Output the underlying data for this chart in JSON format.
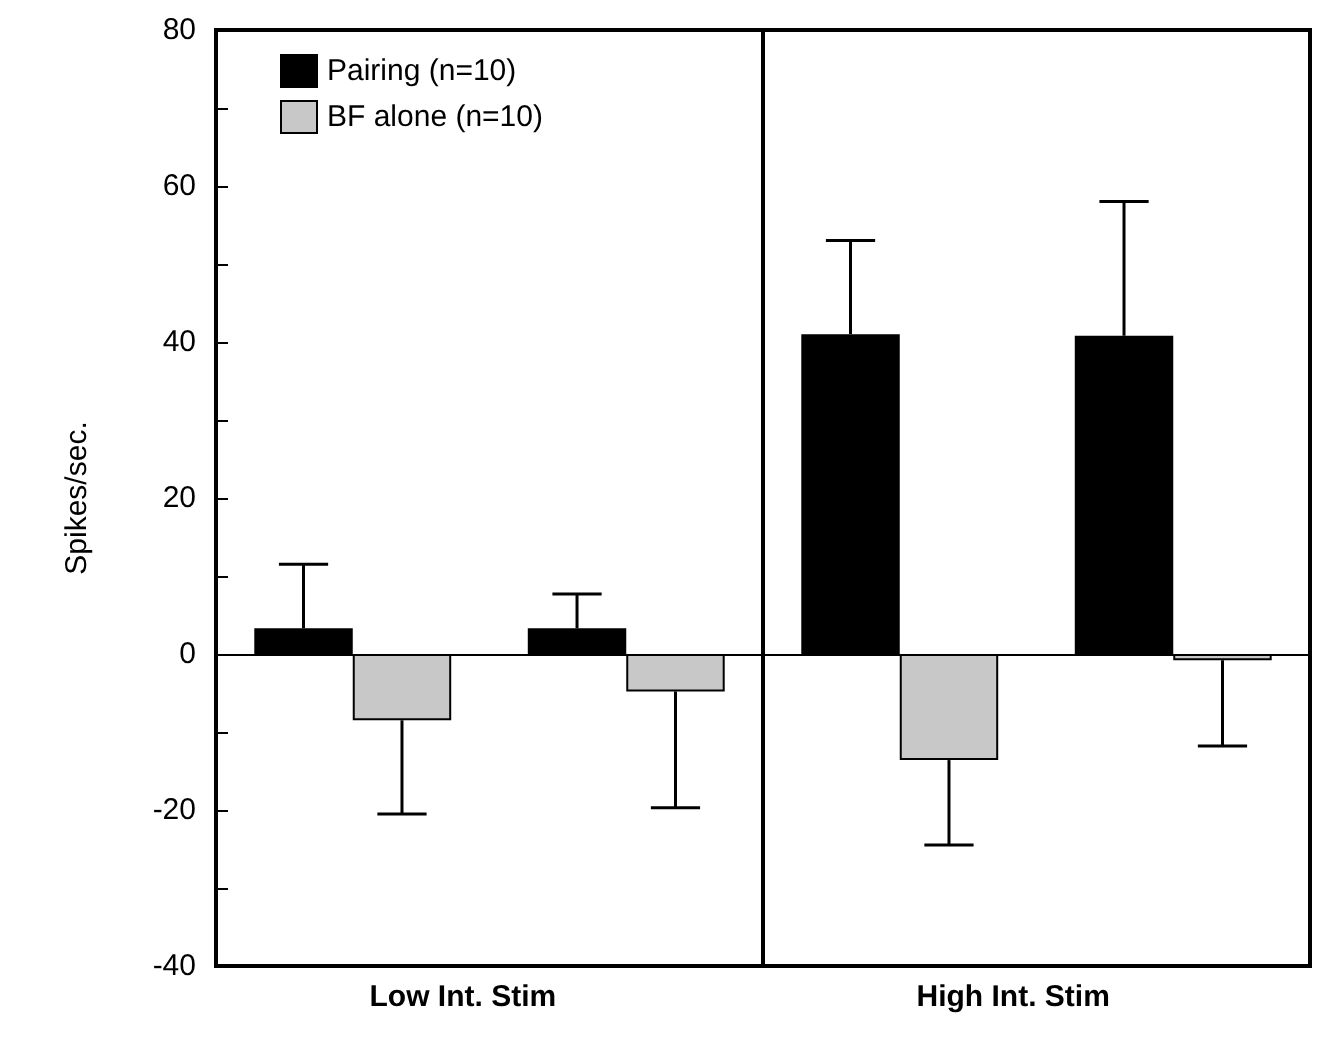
{
  "chart_data": {
    "type": "bar",
    "categories": [
      null,
      null,
      null,
      null
    ],
    "ylabel": "Spikes/sec.",
    "ylim": [
      -40,
      80
    ],
    "yticks": [
      -40,
      {
        "value": -30,
        "label": null
      },
      -20,
      {
        "value": -10,
        "label": null
      },
      0,
      {
        "value": 10,
        "label": null
      },
      20,
      {
        "value": 30,
        "label": null
      },
      40,
      {
        "value": 50,
        "label": null
      },
      60,
      {
        "value": 70,
        "label": null
      },
      80
    ],
    "series": [
      {
        "name": "Pairing (n=10)",
        "color": "#000000",
        "values": [
          3.3,
          3.3,
          41,
          40.8
        ],
        "errors": [
          [
            3.3,
            11.5
          ],
          [
            3.3,
            7.7
          ],
          [
            41,
            53
          ],
          [
            40.8,
            58
          ]
        ]
      },
      {
        "name": "BF alone (n=10)",
        "color": "#c8c8c8",
        "values": [
          -8.5,
          -4.8,
          -13.6,
          -0.8
        ],
        "errors": [
          [
            -20.5,
            -8.5
          ],
          [
            -19.7,
            -4.8
          ],
          [
            -24.5,
            -13.6
          ],
          [
            -11.8,
            -0.8
          ]
        ]
      }
    ],
    "annotations": [
      "Low Int. Stim",
      "High Int. Stim"
    ],
    "ref_lines": [
      {
        "axis": "y",
        "value": 0,
        "color": "#000000"
      }
    ],
    "legend": "top left",
    "grid": false
  }
}
